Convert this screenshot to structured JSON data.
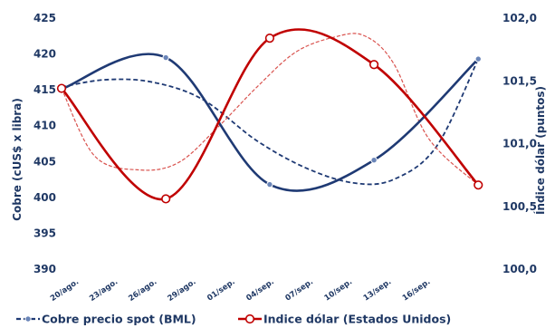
{
  "chart_data": {
    "type": "line",
    "categories": [
      "20/ago.",
      "23/ago.",
      "26/ago.",
      "29/ago.",
      "01/sep.",
      "04/sep.",
      "07/sep.",
      "10/sep.",
      "13/sep.",
      "16/sep."
    ],
    "ylabel_left": "Cobre (cUS$ x libra)",
    "ylabel_right": "Índice dólar (puntos)",
    "ylim_left": [
      390,
      425
    ],
    "yticks_left": [
      "390",
      "395",
      "400",
      "405",
      "410",
      "415",
      "420",
      "425"
    ],
    "ylim_right": [
      100.0,
      102.0
    ],
    "yticks_right": [
      "100,0",
      "100,5",
      "101,0",
      "101,5",
      "102,0"
    ],
    "grid": false,
    "legend_position": "bottom",
    "series": [
      {
        "name": "Cobre precio spot (BML)",
        "axis": "left",
        "color": "#1f3a74",
        "marker": "filled-circle",
        "points": [
          [
            0,
            415.1
          ],
          [
            2.67,
            419.5
          ],
          [
            5.33,
            401.8
          ],
          [
            8.0,
            405.2
          ],
          [
            10.67,
            419.3
          ]
        ],
        "trend_points": [
          [
            0,
            415.4
          ],
          [
            1.1,
            416.4
          ],
          [
            2.3,
            416.1
          ],
          [
            3.6,
            413.7
          ],
          [
            5.0,
            407.9
          ],
          [
            6.3,
            404.0
          ],
          [
            7.5,
            402.0
          ],
          [
            8.5,
            402.5
          ],
          [
            9.6,
            407.1
          ],
          [
            10.67,
            419.3
          ]
        ]
      },
      {
        "name": "Indice dólar (Estados Unidos)",
        "axis": "right",
        "color": "#c00000",
        "marker": "hollow-circle",
        "points": [
          [
            0,
            101.44
          ],
          [
            2.67,
            100.56
          ],
          [
            5.33,
            101.84
          ],
          [
            8.0,
            101.63
          ],
          [
            10.67,
            100.67
          ]
        ],
        "trend_points": [
          [
            0,
            101.44
          ],
          [
            0.85,
            100.9
          ],
          [
            2.0,
            100.79
          ],
          [
            3.0,
            100.85
          ],
          [
            4.0,
            101.13
          ],
          [
            5.0,
            101.45
          ],
          [
            6.0,
            101.73
          ],
          [
            7.0,
            101.85
          ],
          [
            7.75,
            101.86
          ],
          [
            8.5,
            101.64
          ],
          [
            9.4,
            101.04
          ],
          [
            10.67,
            100.67
          ]
        ]
      }
    ]
  }
}
